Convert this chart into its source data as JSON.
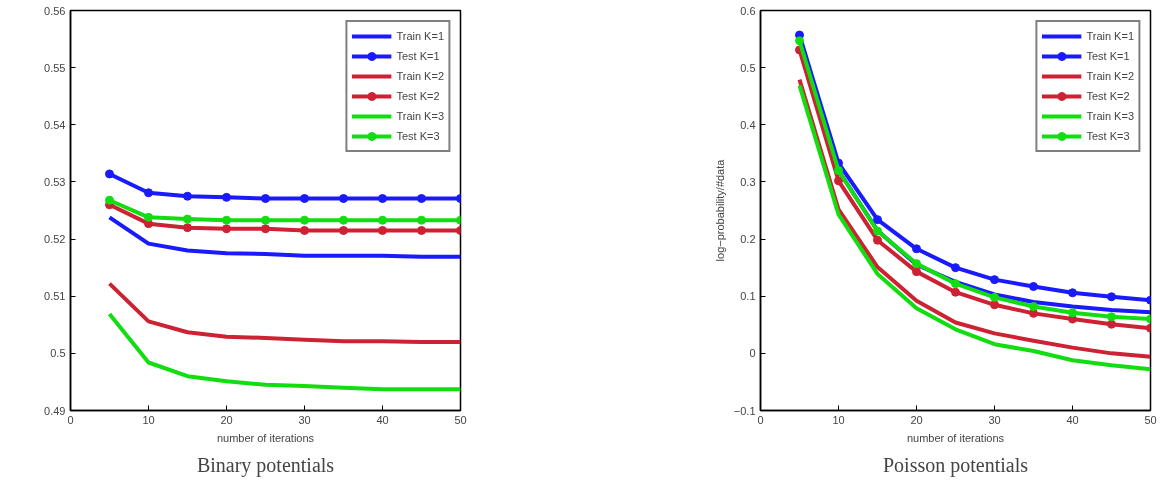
{
  "chart_data": [
    {
      "type": "line",
      "title": "Binary potentials",
      "xlabel": "number of iterations",
      "x": [
        5,
        10,
        15,
        20,
        25,
        30,
        35,
        40,
        45,
        50
      ],
      "xlim": [
        0,
        50
      ],
      "xticks": [
        0,
        10,
        20,
        30,
        40,
        50
      ],
      "ylim": [
        0.49,
        0.56
      ],
      "yticks": [
        0.49,
        0.5,
        0.51,
        0.52,
        0.53,
        0.54,
        0.55,
        0.56
      ],
      "grid": false,
      "legend": "top right",
      "series": [
        {
          "name": "Train K=1",
          "color": "#1a1aff",
          "marker": "none",
          "values": [
            0.5238,
            0.5192,
            0.518,
            0.5175,
            0.5174,
            0.5171,
            0.5171,
            0.5171,
            0.5169,
            0.5169
          ]
        },
        {
          "name": "Test K=1",
          "color": "#1a1aff",
          "marker": "circle",
          "values": [
            0.5314,
            0.5281,
            0.5275,
            0.5273,
            0.5271,
            0.5271,
            0.5271,
            0.5271,
            0.5271,
            0.5271
          ]
        },
        {
          "name": "Train K=2",
          "color": "#cc2233",
          "marker": "none",
          "values": [
            0.5122,
            0.5056,
            0.5037,
            0.5029,
            0.5027,
            0.5024,
            0.5021,
            0.5021,
            0.502,
            0.502
          ]
        },
        {
          "name": "Test K=2",
          "color": "#cc2233",
          "marker": "circle",
          "values": [
            0.526,
            0.5227,
            0.522,
            0.5218,
            0.5218,
            0.5215,
            0.5215,
            0.5215,
            0.5215,
            0.5215
          ]
        },
        {
          "name": "Train K=3",
          "color": "#11dd11",
          "marker": "none",
          "values": [
            0.5069,
            0.4984,
            0.496,
            0.4951,
            0.4945,
            0.4943,
            0.494,
            0.4937,
            0.4937,
            0.4937
          ]
        },
        {
          "name": "Test K=3",
          "color": "#11dd11",
          "marker": "circle",
          "values": [
            0.5268,
            0.5238,
            0.5235,
            0.5233,
            0.5233,
            0.5233,
            0.5233,
            0.5233,
            0.5233,
            0.5233
          ]
        }
      ]
    },
    {
      "type": "line",
      "title": "Poisson potentials",
      "xlabel": "number of iterations",
      "ylabel": "log−probability/#data",
      "x": [
        5,
        10,
        15,
        20,
        25,
        30,
        35,
        40,
        45,
        50
      ],
      "xlim": [
        0,
        50
      ],
      "xticks": [
        0,
        10,
        20,
        30,
        40,
        50
      ],
      "ylim": [
        -0.1,
        0.6
      ],
      "yticks": [
        {
          "value": -0.1,
          "label": "−0.1"
        },
        0,
        0.1,
        0.2,
        0.3,
        0.4,
        0.5,
        0.6
      ],
      "grid": false,
      "legend": "top right",
      "series": [
        {
          "name": "Train K=1",
          "color": "#1a1aff",
          "marker": "none",
          "values": [
            0.55,
            0.32,
            0.215,
            0.155,
            0.125,
            0.103,
            0.09,
            0.082,
            0.076,
            0.072
          ]
        },
        {
          "name": "Test K=1",
          "color": "#1a1aff",
          "marker": "circle",
          "values": [
            0.557,
            0.333,
            0.234,
            0.183,
            0.15,
            0.129,
            0.117,
            0.106,
            0.099,
            0.093
          ]
        },
        {
          "name": "Train K=2",
          "color": "#cc2233",
          "marker": "none",
          "values": [
            0.479,
            0.252,
            0.151,
            0.092,
            0.054,
            0.035,
            0.022,
            0.01,
            0.0,
            -0.006
          ]
        },
        {
          "name": "Test K=2",
          "color": "#cc2233",
          "marker": "circle",
          "values": [
            0.531,
            0.302,
            0.198,
            0.143,
            0.107,
            0.085,
            0.07,
            0.06,
            0.051,
            0.044
          ]
        },
        {
          "name": "Train K=3",
          "color": "#11dd11",
          "marker": "none",
          "values": [
            0.469,
            0.243,
            0.139,
            0.079,
            0.042,
            0.016,
            0.004,
            -0.012,
            -0.021,
            -0.028
          ]
        },
        {
          "name": "Test K=3",
          "color": "#11dd11",
          "marker": "circle",
          "values": [
            0.547,
            0.32,
            0.214,
            0.157,
            0.122,
            0.098,
            0.082,
            0.071,
            0.064,
            0.06
          ]
        }
      ]
    }
  ]
}
